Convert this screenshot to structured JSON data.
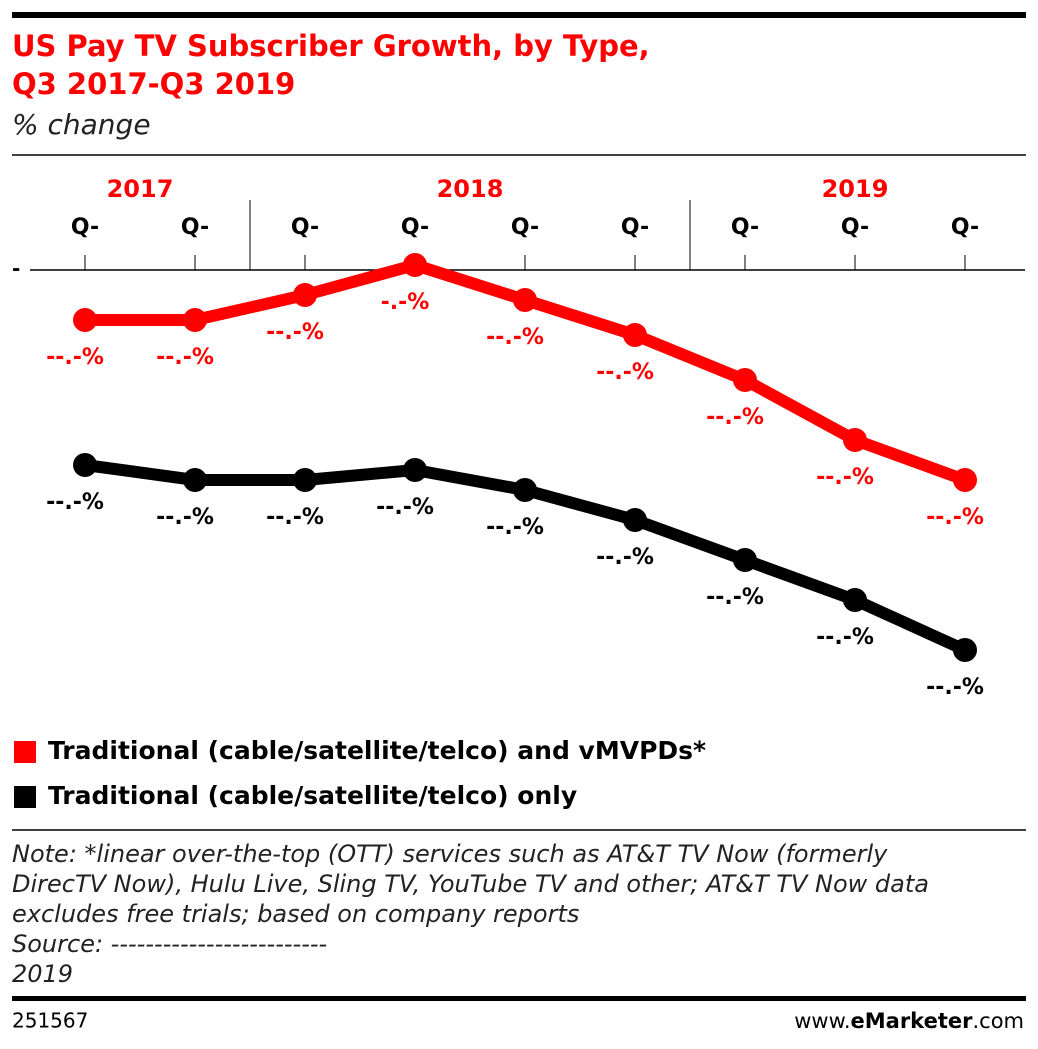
{
  "chart_data": {
    "type": "line",
    "title_lines": [
      "US Pay TV Subscriber Growth, by Type,",
      "Q3 2017-Q3 2019"
    ],
    "subtitle": "% change",
    "categories": [
      "Q-",
      "Q-",
      "Q-",
      "Q-",
      "Q-",
      "Q-",
      "Q-",
      "Q-",
      "Q-"
    ],
    "year_groups": [
      {
        "label": "2017",
        "count": 2
      },
      {
        "label": "2018",
        "count": 4
      },
      {
        "label": "2019",
        "count": 3
      }
    ],
    "ylim": [
      -8,
      0.2
    ],
    "yticks": [
      {
        "value": 0,
        "label": "-"
      }
    ],
    "series": [
      {
        "name": "Traditional (cable/satellite/telco) and vMVPDs*",
        "color": "#ff0000",
        "values": [
          -1.0,
          -1.0,
          -0.5,
          0.1,
          -0.6,
          -1.3,
          -2.2,
          -3.4,
          -4.2
        ],
        "value_labels": [
          "--.-%",
          "--.-%",
          "--.-%",
          "-.-%",
          "--.-%",
          "--.-%",
          "--.-%",
          "--.-%",
          "--.-%"
        ]
      },
      {
        "name": "Traditional (cable/satellite/telco) only",
        "color": "#000000",
        "values": [
          -3.9,
          -4.2,
          -4.2,
          -4.0,
          -4.4,
          -5.0,
          -5.8,
          -6.6,
          -7.6
        ],
        "value_labels": [
          "--.-%",
          "--.-%",
          "--.-%",
          "--.-%",
          "--.-%",
          "--.-%",
          "--.-%",
          "--.-%",
          "--.-%"
        ]
      }
    ],
    "note_lines": [
      "Note: *linear over-the-top (OTT) services such as AT&T TV Now (formerly",
      "DirecTV Now), Hulu Live, Sling TV, YouTube TV and other; AT&T TV Now data",
      "excludes free trials; based on company reports",
      "Source: -------------------------",
      "2019"
    ],
    "chart_id": "251567",
    "footer_site": [
      "www.",
      "eMarketer",
      ".com"
    ]
  }
}
